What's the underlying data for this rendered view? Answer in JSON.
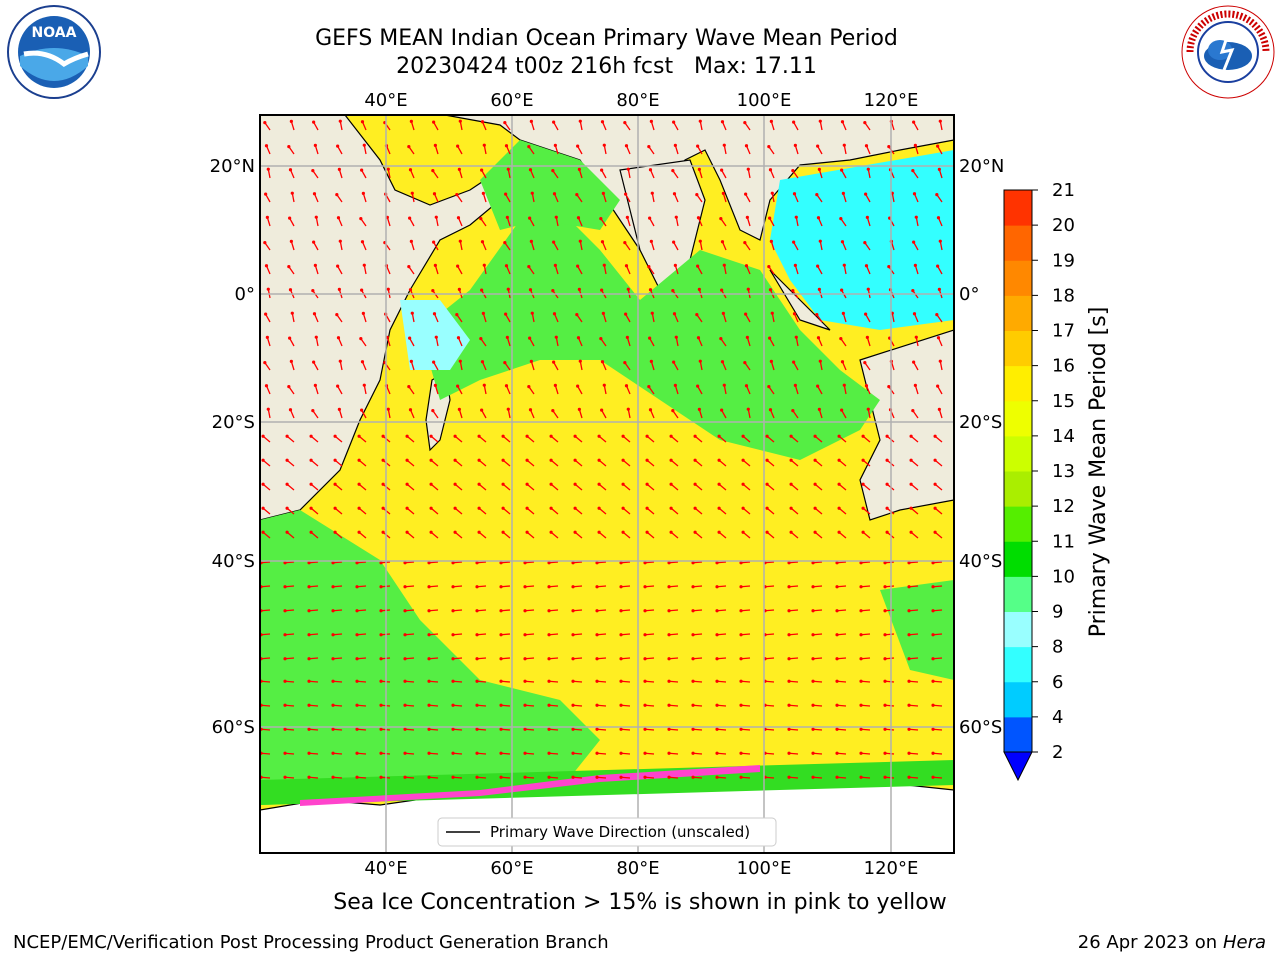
{
  "header": {
    "title": "GEFS MEAN Indian Ocean Primary Wave Mean Period",
    "subtitle": "20230424 t00z 216h fcst   Max: 17.11"
  },
  "logos": {
    "left": "NOAA",
    "left_ring_text": "NATIONAL OCEANIC AND ATMOSPHERIC ADMINISTRATION · U.S. DEPARTMENT OF COMMERCE",
    "right_ring_text": "NATIONAL WEATHER SERVICE"
  },
  "map": {
    "lon_ticks": [
      "40°E",
      "60°E",
      "80°E",
      "100°E",
      "120°E"
    ],
    "lat_ticks_left": [
      "20°N",
      "0°",
      "20°S",
      "40°S",
      "60°S"
    ],
    "lat_ticks_right": [
      "20°N",
      "0°",
      "20°S",
      "40°S",
      "60°S"
    ],
    "legend_label": "Primary Wave Direction (unscaled)",
    "land_color": "#efecdc",
    "arrow_color": "#ff0000"
  },
  "colorbar": {
    "label": "Primary Wave Mean Period [s]",
    "ticks": [
      "2",
      "4",
      "6",
      "8",
      "9",
      "10",
      "11",
      "12",
      "13",
      "14",
      "15",
      "16",
      "17",
      "18",
      "19",
      "20",
      "21"
    ],
    "colors": [
      "#0055ff",
      "#00ccff",
      "#33ffff",
      "#99ffff",
      "#55ff88",
      "#00dd00",
      "#55ee00",
      "#aaee00",
      "#ccff00",
      "#eeff00",
      "#ffee00",
      "#ffcc00",
      "#ffaa00",
      "#ff8800",
      "#ff6600",
      "#ff3300"
    ],
    "extend_color": "#0000ff"
  },
  "notes": {
    "ice": "Sea Ice Concentration > 15% is shown in pink to yellow"
  },
  "footer": {
    "left": "NCEP/EMC/Verification Post Processing Product Generation Branch",
    "date": "26 Apr 2023 on ",
    "machine": "Hera"
  }
}
